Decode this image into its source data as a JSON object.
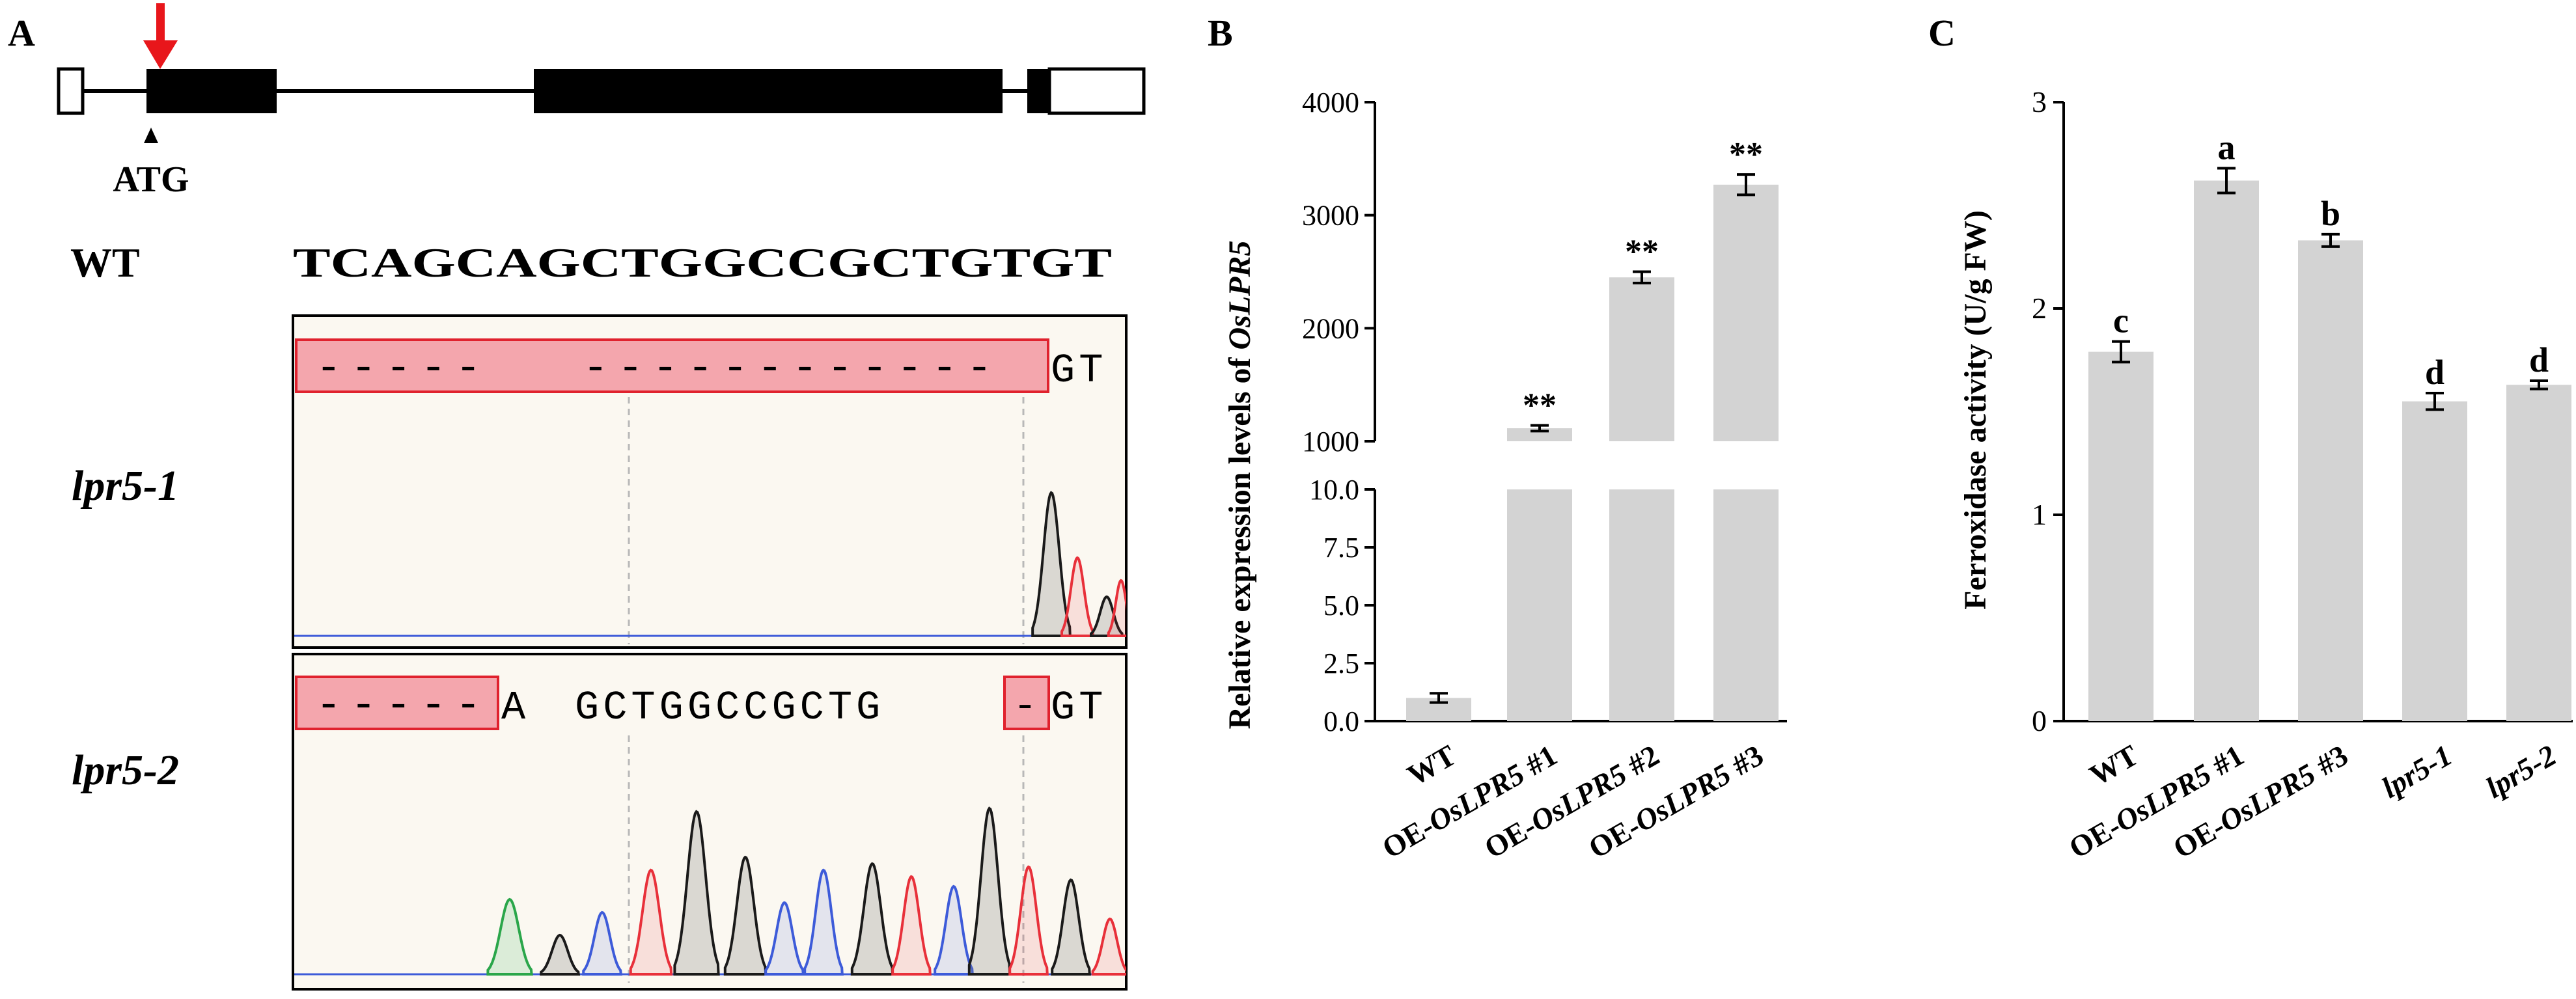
{
  "panels": {
    "a": {
      "label": "A",
      "atg": "ATG",
      "wt_label": "WT",
      "wt_seq": "TCAGCAGCTGGCCGCTGTGT",
      "mut1": {
        "name": "lpr5-1",
        "dashes_1": "-----",
        "dashes_2": "------------",
        "tail": "GT"
      },
      "mut2": {
        "name": "lpr5-2",
        "dashes": "-----",
        "seq_a": "A",
        "seq_main": "GCTGGCCGCTG",
        "dash_2": "-",
        "tail": "GT"
      },
      "colors": {
        "arrow": "#e8161b",
        "deletion_fill": "#f4a6ad",
        "deletion_stroke": "#e0222e",
        "trace_bg": "#fbf8f1"
      }
    },
    "b": {
      "label": "B"
    },
    "c": {
      "label": "C"
    }
  },
  "chart_data": [
    {
      "type": "bar",
      "panel": "B",
      "categories": [
        "WT",
        "OE-OsLPR5 #1",
        "OE-OsLPR5 #2",
        "OE-OsLPR5 #3"
      ],
      "values": [
        1.0,
        1115,
        2450,
        3270
      ],
      "errors": [
        0.2,
        25,
        50,
        90
      ],
      "annotations": [
        "",
        "**",
        "**",
        "**"
      ],
      "ylabel_prefix": "Relative expression levels of ",
      "ylabel_gene": "OsLPR5",
      "axis_break": true,
      "lower_ylim": [
        0,
        10
      ],
      "lower_ticks": [
        "0.0",
        "2.5",
        "5.0",
        "7.5",
        "10.0"
      ],
      "upper_ylim": [
        1000,
        4000
      ],
      "upper_ticks": [
        "1000",
        "2000",
        "3000",
        "4000"
      ],
      "bar_color": "#d3d3d3"
    },
    {
      "type": "bar",
      "panel": "C",
      "categories": [
        "WT",
        "OE-OsLPR5 #1",
        "OE-OsLPR5 #3",
        "lpr5-1",
        "lpr5-2"
      ],
      "values": [
        1.79,
        2.62,
        2.33,
        1.55,
        1.63
      ],
      "errors": [
        0.05,
        0.06,
        0.03,
        0.04,
        0.02
      ],
      "annotations": [
        "c",
        "a",
        "b",
        "d",
        "d"
      ],
      "ylabel": "Ferroxidase activity (U/g FW)",
      "ylim": [
        0,
        3
      ],
      "ticks": [
        "0",
        "1",
        "2",
        "3"
      ],
      "bar_color": "#d3d3d3"
    }
  ]
}
